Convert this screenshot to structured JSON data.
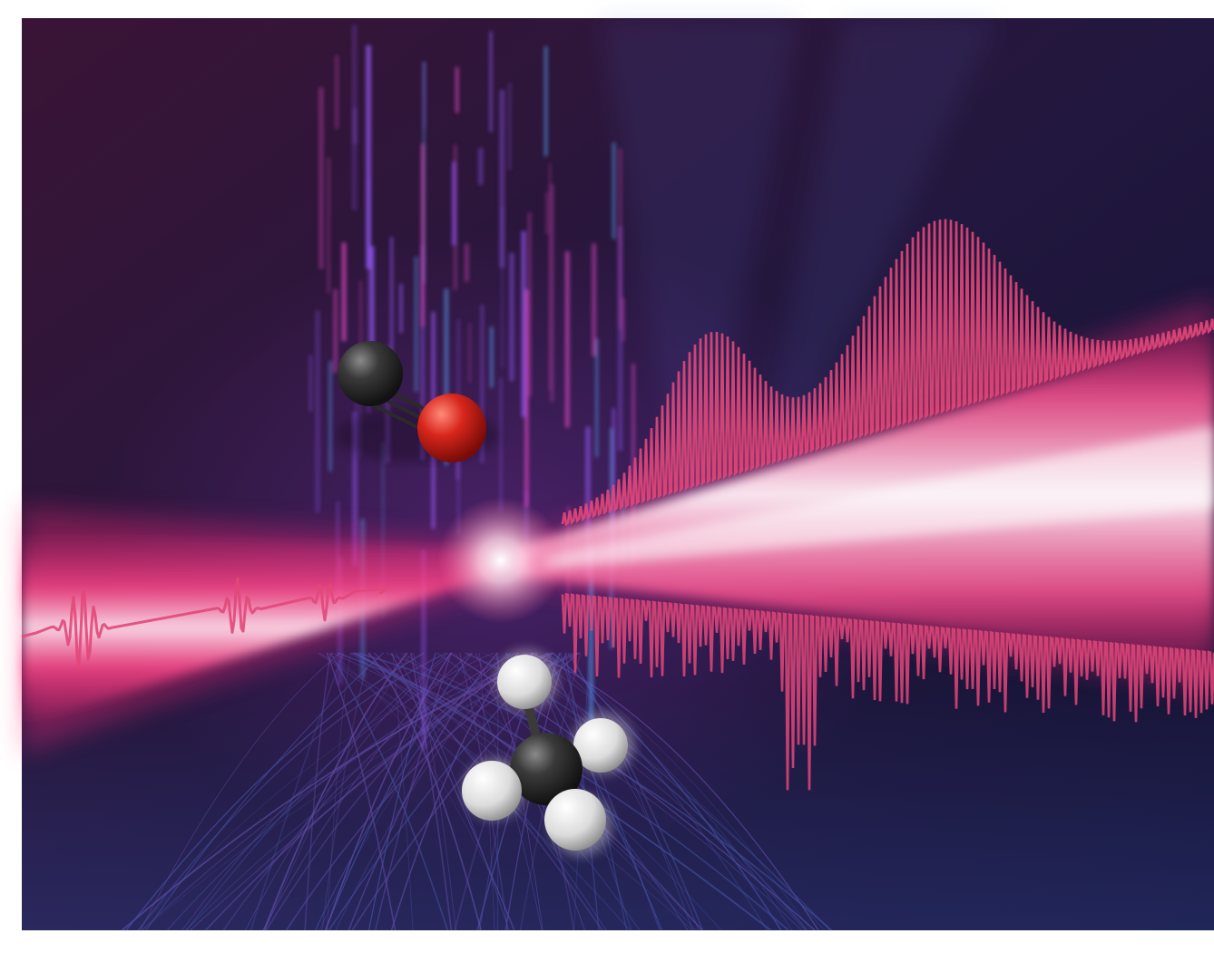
{
  "colors": {
    "background_top_left": "#3a1436",
    "background_right": "#141436",
    "background_bottom": "#16183a",
    "beam_core": "#fff0f6",
    "beam_glow": "#ff2f7d",
    "spectrum_line": "#e2487a",
    "vertical_streaks": "#7f4fd6",
    "carbon_atom": "#2b2b2b",
    "oxygen_atom": "#d8261c",
    "hydrogen_atom": "#e9e9e9",
    "frame_border": "#ffffff"
  },
  "icons": {
    "co_molecule": "carbon-monoxide-molecule-icon",
    "ch4_molecule": "methane-molecule-icon",
    "pulse_train": "laser-pulse-train-icon",
    "spectrum": "absorption-spectrum-icon"
  }
}
